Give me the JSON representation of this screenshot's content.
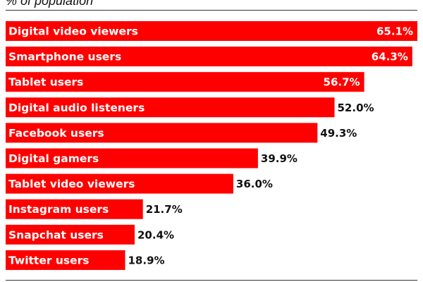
{
  "chart_data": {
    "type": "bar",
    "orientation": "horizontal",
    "subtitle": "% of population",
    "categories": [
      "Digital video viewers",
      "Smartphone users",
      "Tablet users",
      "Digital audio listeners",
      "Facebook users",
      "Digital gamers",
      "Tablet video viewers",
      "Instagram users",
      "Snapchat users",
      "Twitter users"
    ],
    "values": [
      65.1,
      64.3,
      56.7,
      52.0,
      49.3,
      39.9,
      36.0,
      21.7,
      20.4,
      18.9
    ],
    "value_labels": [
      "65.1%",
      "64.3%",
      "56.7%",
      "52.0%",
      "49.3%",
      "39.9%",
      "36.0%",
      "21.7%",
      "20.4%",
      "18.9%"
    ],
    "xlim": [
      0,
      65.1
    ],
    "grid": false,
    "legend": "none",
    "bar_color": "#ff0000"
  }
}
